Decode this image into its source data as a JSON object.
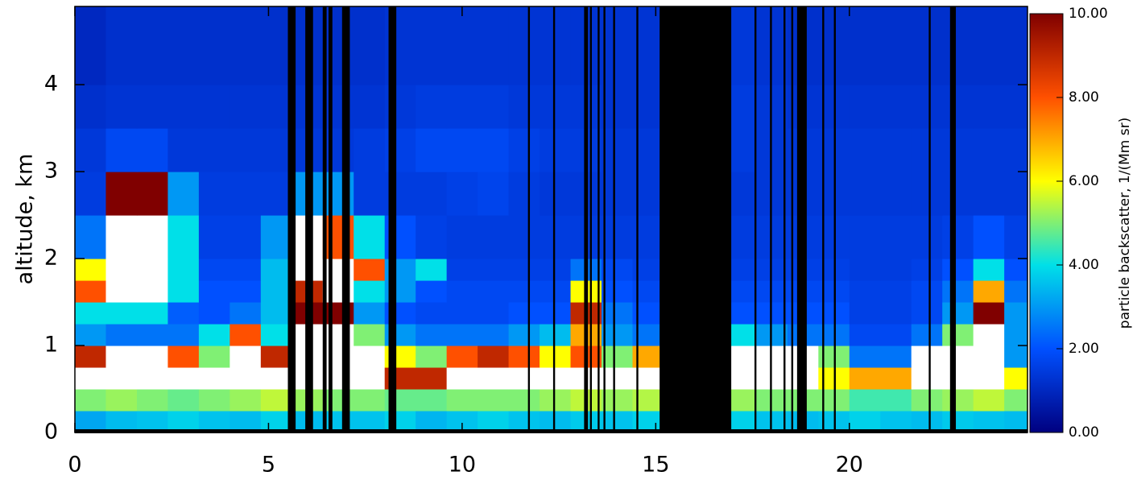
{
  "chart_data": {
    "type": "heatmap",
    "y_label": "altitude, km",
    "colorbar_label": "particle backscatter, 1/(Mm sr)",
    "xlim": [
      0,
      24.6
    ],
    "xticks": [
      0,
      5,
      10,
      15,
      20
    ],
    "ylim": [
      0,
      4.9
    ],
    "yticks": [
      0,
      1,
      2,
      3,
      4
    ],
    "clim": [
      0,
      10
    ],
    "cticks": [
      {
        "value": 0,
        "label": "0.00"
      },
      {
        "value": 2,
        "label": "2.00"
      },
      {
        "value": 4,
        "label": "4.00"
      },
      {
        "value": 6,
        "label": "6.00"
      },
      {
        "value": 8,
        "label": "8.00"
      },
      {
        "value": 10,
        "label": "10.00"
      }
    ],
    "colorscale": [
      "#000080",
      "#0050ff",
      "#00e0e8",
      "#ffff00",
      "#ff5000",
      "#800000"
    ],
    "over_color": "#ffffff",
    "missing_color": "#000000",
    "x_edges": [
      0,
      0.8,
      1.6,
      2.4,
      3.2,
      4.0,
      4.8,
      5.6,
      6.4,
      7.2,
      8.0,
      8.8,
      9.6,
      10.4,
      11.2,
      12.0,
      12.8,
      13.6,
      14.4,
      15.2,
      16.0,
      16.8,
      17.6,
      18.4,
      19.2,
      20.0,
      20.8,
      21.6,
      22.4,
      23.2,
      24.0,
      24.6
    ],
    "y_edges": [
      0,
      0.25,
      0.5,
      0.75,
      1.0,
      1.25,
      1.5,
      1.75,
      2.0,
      2.5,
      3.0,
      3.5,
      4.0,
      4.9
    ],
    "z": [
      [
        3.2,
        3.5,
        3.6,
        3.8,
        3.6,
        3.5,
        3.8,
        3.5,
        3.6,
        3.6,
        3.8,
        3.4,
        3.6,
        3.8,
        3.6,
        3.5,
        3.7,
        3.6,
        3.8,
        3.6,
        3.6,
        3.8,
        3.6,
        3.5,
        3.6,
        3.8,
        3.6,
        3.5,
        3.7,
        3.6,
        3.5
      ],
      [
        5,
        5.2,
        5,
        4.8,
        5,
        5.2,
        5.5,
        5.2,
        5,
        5,
        4.8,
        4.8,
        5,
        5,
        5,
        5.2,
        5.5,
        5.2,
        5.4,
        5.2,
        5.2,
        5.2,
        5,
        5,
        5,
        4.5,
        4.5,
        5,
        5.2,
        5.5,
        5
      ],
      [
        12,
        12,
        12,
        12,
        12,
        12,
        12,
        12,
        12,
        12,
        9,
        9,
        12,
        12,
        12,
        12,
        12,
        12,
        12,
        12,
        12,
        12,
        12,
        12,
        6,
        7,
        7,
        12,
        12,
        12,
        6
      ],
      [
        9,
        12,
        12,
        8,
        5,
        12,
        9,
        12,
        12,
        12,
        6,
        5,
        8,
        9,
        8,
        6,
        8,
        5,
        7,
        5,
        5,
        12,
        12,
        12,
        5,
        2.5,
        2.5,
        12,
        12,
        12,
        3
      ],
      [
        3,
        2.5,
        2.5,
        2.5,
        4,
        8,
        4,
        12,
        12,
        5,
        3,
        2.5,
        2.5,
        2.5,
        3,
        3.5,
        7,
        3,
        2.5,
        2.5,
        2.5,
        4,
        3,
        2.5,
        2.5,
        1.8,
        1.8,
        2.5,
        5,
        12,
        3
      ],
      [
        4,
        4,
        4,
        2.2,
        2,
        2.5,
        3.5,
        10,
        10,
        3,
        2,
        1.8,
        1.8,
        1.8,
        2,
        2,
        9,
        2.5,
        2,
        2,
        2,
        2,
        2,
        2,
        2,
        1.6,
        1.6,
        1.8,
        3,
        10,
        3
      ],
      [
        8,
        12,
        12,
        4,
        2,
        2,
        3.5,
        9,
        12,
        4,
        3,
        2,
        1.8,
        1.8,
        1.8,
        1.8,
        6,
        2,
        1.8,
        1.8,
        1.8,
        1.8,
        1.8,
        1.8,
        1.8,
        1.6,
        1.6,
        1.8,
        2.5,
        7,
        2.5
      ],
      [
        6,
        12,
        12,
        4,
        1.8,
        1.8,
        3.5,
        12,
        12,
        8,
        3,
        4,
        1.6,
        1.6,
        1.6,
        1.6,
        2.5,
        1.8,
        1.6,
        1.6,
        1.6,
        1.6,
        1.6,
        1.6,
        1.6,
        1.5,
        1.5,
        1.6,
        2,
        4,
        2
      ],
      [
        2.5,
        12,
        12,
        4,
        1.6,
        1.6,
        3,
        12,
        8,
        4,
        2,
        1.6,
        1.5,
        1.5,
        1.5,
        1.5,
        1.5,
        1.5,
        1.5,
        1.5,
        1.5,
        1.5,
        1.5,
        1.5,
        1.5,
        1.5,
        1.5,
        1.5,
        1.6,
        2,
        1.6
      ],
      [
        1.5,
        10,
        10,
        3,
        1.5,
        1.5,
        1.5,
        3,
        3,
        1.5,
        1.5,
        1.5,
        1.6,
        1.7,
        1.5,
        1.4,
        1.4,
        1.4,
        1.4,
        1.4,
        1.4,
        1.4,
        1.4,
        1.4,
        1.4,
        1.4,
        1.4,
        1.4,
        1.4,
        1.4,
        1.4
      ],
      [
        1.4,
        1.8,
        1.8,
        1.4,
        1.4,
        1.4,
        1.4,
        1.4,
        1.4,
        1.5,
        1.6,
        1.8,
        1.8,
        1.8,
        1.6,
        1.5,
        1.5,
        1.4,
        1.4,
        1.5,
        1.6,
        1.5,
        1.4,
        1.4,
        1.4,
        1.4,
        1.4,
        1.4,
        1.4,
        1.4,
        1.4
      ],
      [
        1.2,
        1.3,
        1.3,
        1.3,
        1.3,
        1.3,
        1.3,
        1.3,
        1.3,
        1.3,
        1.4,
        1.5,
        1.5,
        1.5,
        1.4,
        1.4,
        1.4,
        1.3,
        1.3,
        1.4,
        1.5,
        1.5,
        1.4,
        1.3,
        1.3,
        1.3,
        1.3,
        1.3,
        1.3,
        1.3,
        1.3
      ],
      [
        1.0,
        1.2,
        1.2,
        1.2,
        1.2,
        1.2,
        1.2,
        1.2,
        1.2,
        1.2,
        1.3,
        1.3,
        1.3,
        1.3,
        1.3,
        1.3,
        1.3,
        1.3,
        1.3,
        1.3,
        1.3,
        1.4,
        1.3,
        1.2,
        1.2,
        1.2,
        1.2,
        1.2,
        1.2,
        1.2,
        1.2
      ]
    ],
    "missing": [
      [
        5.5,
        5.7
      ],
      [
        5.95,
        6.15
      ],
      [
        6.4,
        6.5
      ],
      [
        6.55,
        6.65
      ],
      [
        6.9,
        7.1
      ],
      [
        8.1,
        8.3
      ],
      [
        11.7,
        11.75
      ],
      [
        12.35,
        12.4
      ],
      [
        13.15,
        13.25
      ],
      [
        13.3,
        13.35
      ],
      [
        13.5,
        13.55
      ],
      [
        13.65,
        13.7
      ],
      [
        13.9,
        13.95
      ],
      [
        14.5,
        14.55
      ],
      [
        15.1,
        16.95
      ],
      [
        17.55,
        17.6
      ],
      [
        17.95,
        18.0
      ],
      [
        18.3,
        18.35
      ],
      [
        18.5,
        18.55
      ],
      [
        18.65,
        18.9
      ],
      [
        19.3,
        19.35
      ],
      [
        19.6,
        19.65
      ],
      [
        22.05,
        22.1
      ],
      [
        22.6,
        22.75
      ]
    ]
  }
}
